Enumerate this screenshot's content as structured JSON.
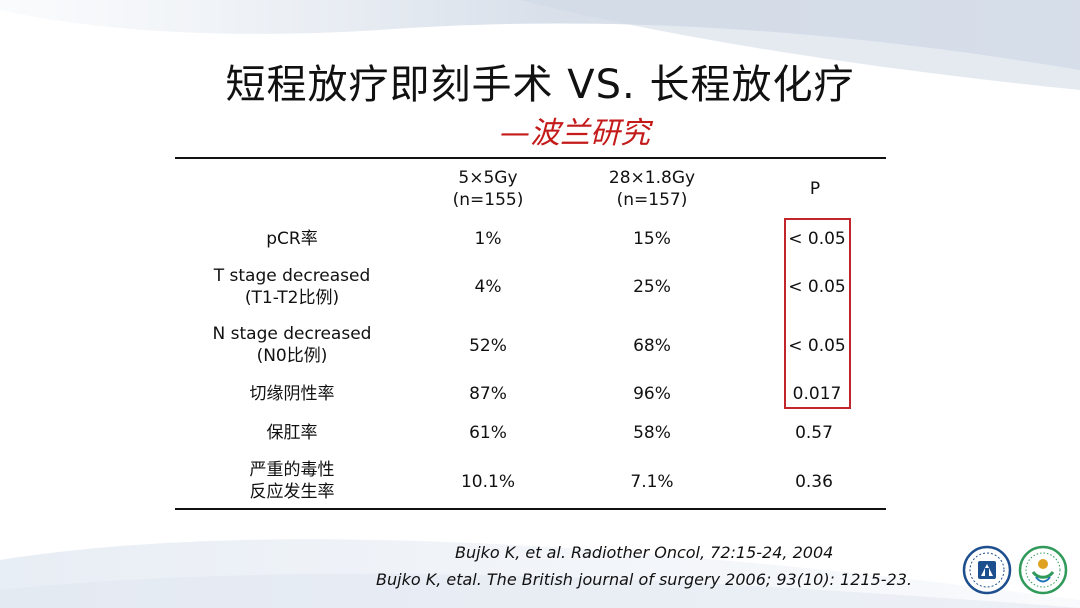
{
  "title": "短程放疗即刻手术 VS. 长程放化疗",
  "subtitle": "—波兰研究",
  "table": {
    "header": [
      {
        "line1": "",
        "line2": ""
      },
      {
        "line1": "5×5Gy",
        "line2": "(n=155)"
      },
      {
        "line1": "28×1.8Gy",
        "line2": "(n=157)"
      },
      {
        "line1": "P",
        "line2": ""
      }
    ],
    "rows": [
      {
        "label1": "pCR率",
        "label2": "",
        "a": "1%",
        "b": "15%",
        "p": "< 0.05"
      },
      {
        "label1": "T stage decreased",
        "label2": "(T1-T2比例)",
        "a": "4%",
        "b": "25%",
        "p": "< 0.05"
      },
      {
        "label1": "N stage decreased",
        "label2": "(N0比例)",
        "a": "52%",
        "b": "68%",
        "p": "< 0.05"
      },
      {
        "label1": "切缘阴性率",
        "label2": "",
        "a": "87%",
        "b": "96%",
        "p": "0.017"
      },
      {
        "label1": "保肛率",
        "label2": "",
        "a": "61%",
        "b": "58%",
        "p": "0.57"
      },
      {
        "label1": "严重的毒性",
        "label2": "反应发生率",
        "a": "10.1%",
        "b": "7.1%",
        "p": "0.36"
      }
    ]
  },
  "citations": [
    "Bujko K, et al. Radiother Oncol, 72:15-24, 2004",
    "Bujko K, etal. The British journal of surgery 2006; 93(10): 1215-23."
  ],
  "colors": {
    "title": "#111111",
    "subtitle": "#c41a1a",
    "highlight_box": "#c0262b",
    "logo1": "#1d4f8f",
    "logo2": "#2f9a5a"
  },
  "logos": [
    "hospital-logo",
    "association-logo"
  ]
}
